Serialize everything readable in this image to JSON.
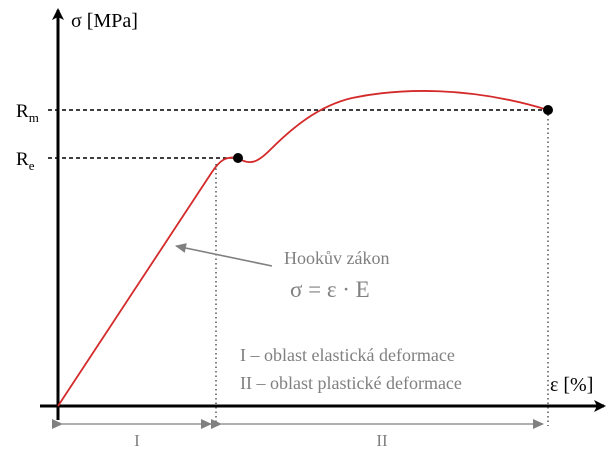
{
  "y_axis_label": "σ [MPa]",
  "x_axis_label": "ε [%]",
  "rm_label": {
    "main": "R",
    "sub": "m"
  },
  "re_label": {
    "main": "R",
    "sub": "e"
  },
  "hooke_label": "Hookův zákon",
  "hooke_formula": "σ = ε · E",
  "legend": [
    "I – oblast elastická deformace",
    "II – oblast plastické deformace"
  ],
  "regions": [
    "I",
    "II"
  ],
  "colors": {
    "curve": "#d42a2a",
    "axes": "#000000",
    "annotation": "#808080"
  }
}
